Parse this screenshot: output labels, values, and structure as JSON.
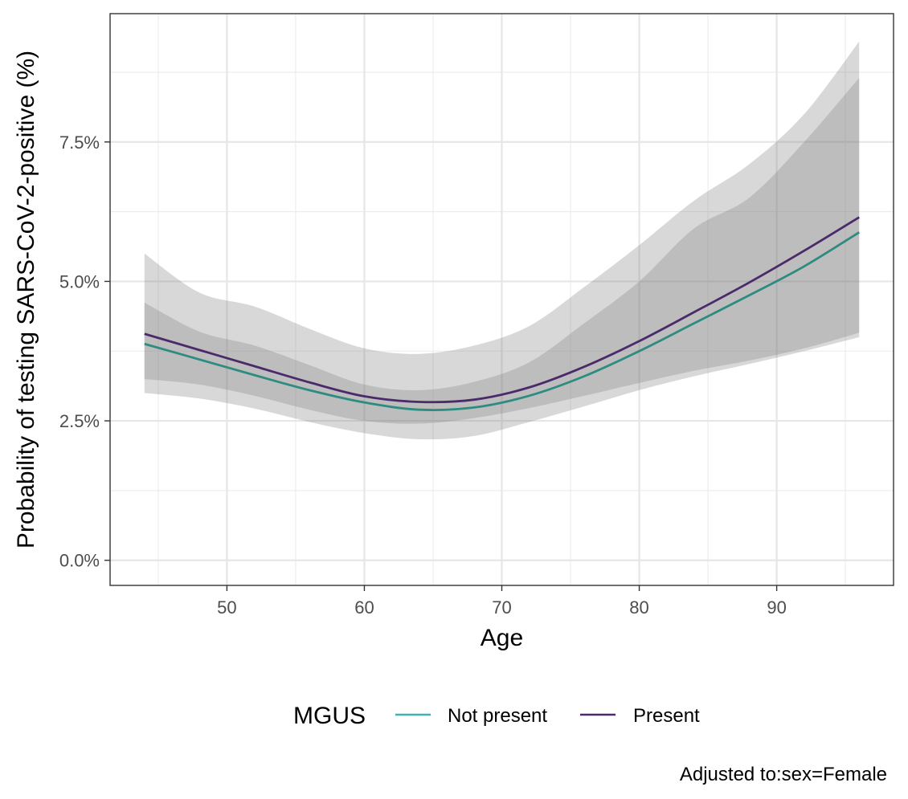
{
  "chart_data": {
    "type": "line",
    "xlabel": "Age",
    "ylabel": "Probability of testing SARS-CoV-2-positive (%)",
    "xlim": [
      41.5,
      98.5
    ],
    "ylim": [
      -0.45,
      9.8
    ],
    "x_ticks": [
      50,
      60,
      70,
      80,
      90
    ],
    "x_tick_labels": [
      "50",
      "60",
      "70",
      "80",
      "90"
    ],
    "y_ticks": [
      0,
      2.5,
      5,
      7.5
    ],
    "y_tick_labels": [
      "0.0%",
      "2.5%",
      "5.0%",
      "7.5%"
    ],
    "grid": true,
    "legend": {
      "title": "MGUS",
      "placement": "bottom",
      "entries": [
        "Not present",
        "Present"
      ]
    },
    "caption": "Adjusted to:sex=Female",
    "x": [
      44,
      48,
      52,
      56,
      60,
      64,
      68,
      72,
      76,
      80,
      84,
      88,
      92,
      96
    ],
    "series": [
      {
        "name": "Not present",
        "color": "#3fb3b3",
        "line_color": "#2e8b80",
        "values": [
          3.88,
          3.6,
          3.32,
          3.05,
          2.83,
          2.7,
          2.74,
          2.95,
          3.3,
          3.75,
          4.25,
          4.75,
          5.27,
          5.88
        ],
        "ci_lower": [
          3.0,
          2.9,
          2.72,
          2.48,
          2.28,
          2.17,
          2.23,
          2.48,
          2.76,
          3.05,
          3.3,
          3.52,
          3.75,
          4.0
        ],
        "ci_upper": [
          5.5,
          4.8,
          4.55,
          4.15,
          3.8,
          3.7,
          3.85,
          4.2,
          4.9,
          5.65,
          6.45,
          7.1,
          8.0,
          9.3
        ]
      },
      {
        "name": "Present",
        "color": "#4b2a6b",
        "line_color": "#4b2a6b",
        "values": [
          4.06,
          3.77,
          3.48,
          3.19,
          2.94,
          2.84,
          2.88,
          3.1,
          3.47,
          3.93,
          4.45,
          4.98,
          5.55,
          6.15
        ],
        "ci_lower": [
          3.25,
          3.15,
          2.95,
          2.7,
          2.5,
          2.45,
          2.55,
          2.73,
          2.95,
          3.18,
          3.4,
          3.58,
          3.8,
          4.08
        ],
        "ci_upper": [
          4.62,
          4.1,
          3.85,
          3.5,
          3.15,
          3.05,
          3.2,
          3.55,
          4.25,
          5.0,
          5.95,
          6.5,
          7.5,
          8.65
        ]
      }
    ]
  }
}
